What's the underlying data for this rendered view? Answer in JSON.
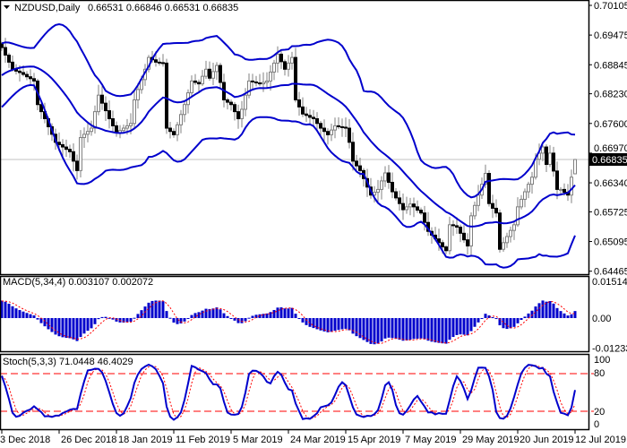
{
  "window": {
    "symbol_title": "NZDUSD,Daily",
    "ohlc_text": "0.66531 0.66846 0.66531 0.66835"
  },
  "chart_data": {
    "type": "candlestick",
    "x_tick_labels": [
      "3 Dec 2018",
      "26 Dec 2018",
      "18 Jan 2019",
      "11 Feb 2019",
      "5 Mar 2019",
      "24 Mar 2019",
      "15 Apr 2019",
      "7 May 2019",
      "29 May 2019",
      "20 Jun 2019",
      "12 Jul 2019"
    ],
    "y_tick_labels": [
      "0.70105",
      "0.69475",
      "0.68845",
      "0.68230",
      "0.67600",
      "0.66970",
      "0.66340",
      "0.65725",
      "0.65095",
      "0.64465"
    ],
    "ylim": [
      0.64465,
      0.70105
    ],
    "current_price": "0.66835",
    "last_bar": {
      "open": 0.66531,
      "high": 0.66846,
      "low": 0.66531,
      "close": 0.66835
    },
    "closes": [
      0.6921,
      0.6905,
      0.689,
      0.6875,
      0.6871,
      0.6868,
      0.6864,
      0.6859,
      0.6855,
      0.685,
      0.68,
      0.6785,
      0.677,
      0.6753,
      0.6737,
      0.672,
      0.6715,
      0.671,
      0.6705,
      0.67,
      0.668,
      0.666,
      0.673,
      0.6737,
      0.6743,
      0.675,
      0.6785,
      0.682,
      0.6803,
      0.6787,
      0.677,
      0.6755,
      0.674,
      0.6745,
      0.675,
      0.6755,
      0.676,
      0.681,
      0.6832,
      0.6853,
      0.6875,
      0.69,
      0.6895,
      0.689,
      0.6889,
      0.6888,
      0.675,
      0.6743,
      0.6736,
      0.6757,
      0.6779,
      0.68,
      0.6825,
      0.685,
      0.6847,
      0.6844,
      0.686,
      0.6875,
      0.6856,
      0.687,
      0.6883,
      0.6847,
      0.681,
      0.6805,
      0.68,
      0.6785,
      0.677,
      0.679,
      0.682,
      0.685,
      0.6848,
      0.6846,
      0.6844,
      0.6847,
      0.685,
      0.6869,
      0.6888,
      0.6907,
      0.6891,
      0.6875,
      0.6888,
      0.69,
      0.681,
      0.6795,
      0.678,
      0.6777,
      0.6773,
      0.677,
      0.676,
      0.675,
      0.6743,
      0.6736,
      0.6746,
      0.6755,
      0.6753,
      0.6752,
      0.675,
      0.672,
      0.668,
      0.667,
      0.666,
      0.6643,
      0.6625,
      0.6608,
      0.6614,
      0.662,
      0.6638,
      0.6655,
      0.6635,
      0.6615,
      0.6602,
      0.659,
      0.6577,
      0.6583,
      0.6589,
      0.6583,
      0.6576,
      0.657,
      0.655,
      0.6531,
      0.6523,
      0.6515,
      0.6507,
      0.6498,
      0.649,
      0.6545,
      0.6543,
      0.654,
      0.6527,
      0.6513,
      0.65,
      0.6564,
      0.6586,
      0.6608,
      0.6631,
      0.6654,
      0.659,
      0.658,
      0.657,
      0.6493,
      0.6507,
      0.652,
      0.6533,
      0.6545,
      0.6583,
      0.6599,
      0.6615,
      0.6631,
      0.6646,
      0.6684,
      0.6697,
      0.671,
      0.6673,
      0.6697,
      0.6659,
      0.662,
      0.662,
      0.6614,
      0.6608,
      0.6646,
      0.66835
    ],
    "macd": {
      "label": "MACD(5,34,4) 0.003107 0.002072",
      "y_tick_labels": [
        "0.015147",
        "0.00",
        "-0.01233"
      ],
      "ylim": [
        -0.01233,
        0.015147
      ]
    },
    "stoch": {
      "label": "Stoch(5,3,3) 71.0448 46.4029",
      "y_tick_labels": [
        "100",
        "80",
        "20",
        "0"
      ],
      "ylim": [
        0,
        100
      ],
      "levels": [
        80,
        20
      ]
    },
    "colors": {
      "bands": "#0000cc",
      "bear_body": "#000000",
      "bull_body": "#ffffff",
      "wick": "#808080",
      "macd_hist": "#0000cc",
      "signal": "#ff0000",
      "stoch_main": "#0000cc",
      "price_line": "#c0c0c0"
    }
  }
}
